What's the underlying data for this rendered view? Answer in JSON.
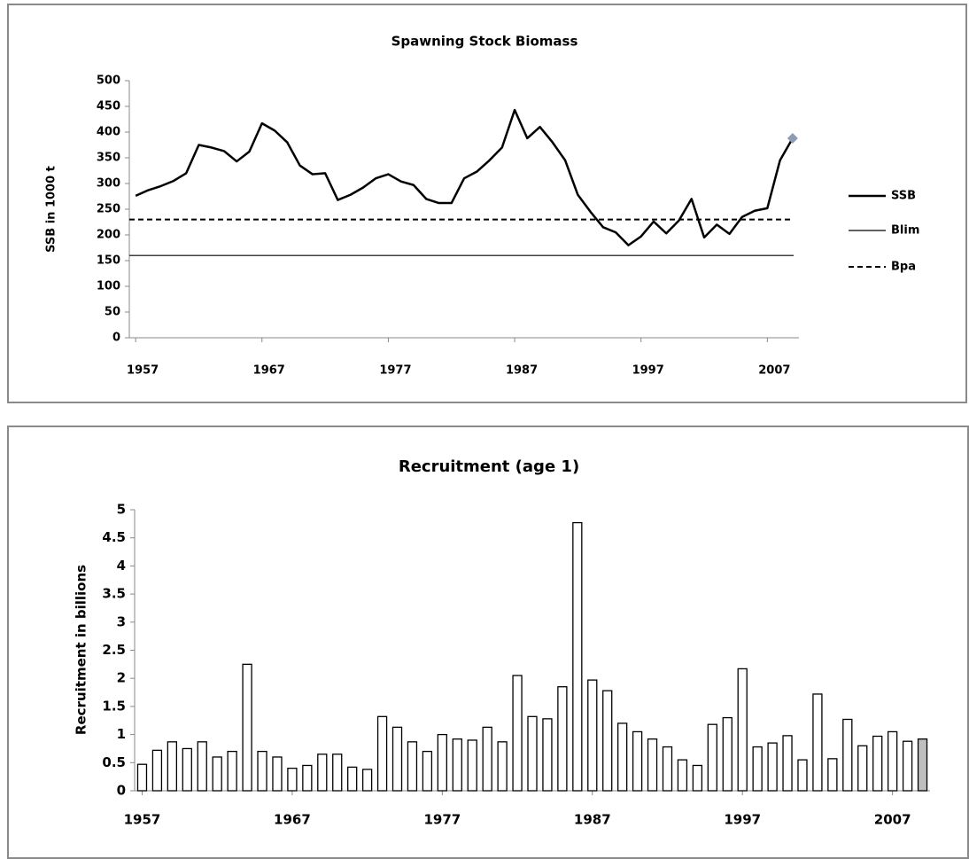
{
  "chart_data": [
    {
      "type": "line",
      "title": "Spawning Stock Biomass",
      "y_label": "SSB in 1000 t",
      "x": [
        1957,
        1958,
        1959,
        1960,
        1961,
        1962,
        1963,
        1964,
        1965,
        1966,
        1967,
        1968,
        1969,
        1970,
        1971,
        1972,
        1973,
        1974,
        1975,
        1976,
        1977,
        1978,
        1979,
        1980,
        1981,
        1982,
        1983,
        1984,
        1985,
        1986,
        1987,
        1988,
        1989,
        1990,
        1991,
        1992,
        1993,
        1994,
        1995,
        1996,
        1997,
        1998,
        1999,
        2000,
        2001,
        2002,
        2003,
        2004,
        2005,
        2006,
        2007,
        2008,
        2009
      ],
      "series": [
        {
          "name": "SSB",
          "color": "#000000",
          "last_point_marker_color": "#8c9db5",
          "values": [
            276,
            287,
            295,
            305,
            320,
            375,
            370,
            363,
            343,
            362,
            417,
            403,
            380,
            335,
            318,
            320,
            268,
            278,
            292,
            310,
            318,
            304,
            297,
            270,
            262,
            262,
            310,
            323,
            345,
            370,
            443,
            388,
            410,
            380,
            345,
            278,
            245,
            215,
            205,
            180,
            197,
            226,
            203,
            228,
            270,
            195,
            220,
            202,
            235,
            247,
            252,
            345,
            388
          ]
        }
      ],
      "reference_lines": [
        {
          "name": "Blim",
          "value": 160,
          "color": "#000000",
          "dashed": false
        },
        {
          "name": "Bpa",
          "value": 230,
          "color": "#000000",
          "dashed": true
        }
      ],
      "xlim": [
        1956.5,
        2009.5
      ],
      "xticks": [
        1957,
        1967,
        1977,
        1987,
        1997,
        2007
      ],
      "ylim": [
        0,
        500
      ],
      "yticks": [
        0,
        50,
        100,
        150,
        200,
        250,
        300,
        350,
        400,
        450,
        500
      ],
      "legend": "right",
      "grid": false
    },
    {
      "type": "bar",
      "title": "Recruitment (age 1)",
      "y_label": "Recruitment in billions",
      "x": [
        1957,
        1958,
        1959,
        1960,
        1961,
        1962,
        1963,
        1964,
        1965,
        1966,
        1967,
        1968,
        1969,
        1970,
        1971,
        1972,
        1973,
        1974,
        1975,
        1976,
        1977,
        1978,
        1979,
        1980,
        1981,
        1982,
        1983,
        1984,
        1985,
        1986,
        1987,
        1988,
        1989,
        1990,
        1991,
        1992,
        1993,
        1994,
        1995,
        1996,
        1997,
        1998,
        1999,
        2000,
        2001,
        2002,
        2003,
        2004,
        2005,
        2006,
        2007,
        2008,
        2009
      ],
      "values": [
        0.47,
        0.72,
        0.87,
        0.75,
        0.87,
        0.6,
        0.7,
        2.25,
        0.7,
        0.6,
        0.4,
        0.45,
        0.65,
        0.65,
        0.42,
        0.38,
        1.32,
        1.13,
        0.87,
        0.7,
        1.0,
        0.92,
        0.9,
        1.13,
        0.87,
        2.05,
        1.32,
        1.28,
        1.85,
        4.77,
        1.97,
        1.78,
        1.2,
        1.05,
        0.92,
        0.78,
        0.55,
        0.45,
        1.18,
        1.3,
        2.17,
        0.78,
        0.85,
        0.98,
        0.55,
        1.72,
        0.57,
        1.27,
        0.8,
        0.97,
        1.05,
        0.88,
        0.92
      ],
      "color": "#ffffff",
      "last_bar_color": "#bfbfbf",
      "xlim": [
        1956.5,
        2009.5
      ],
      "xticks": [
        1957,
        1967,
        1977,
        1987,
        1997,
        2007
      ],
      "ylim": [
        0,
        5
      ],
      "yticks": [
        0,
        0.5,
        1,
        1.5,
        2,
        2.5,
        3,
        3.5,
        4,
        4.5,
        5
      ],
      "grid": false
    }
  ]
}
